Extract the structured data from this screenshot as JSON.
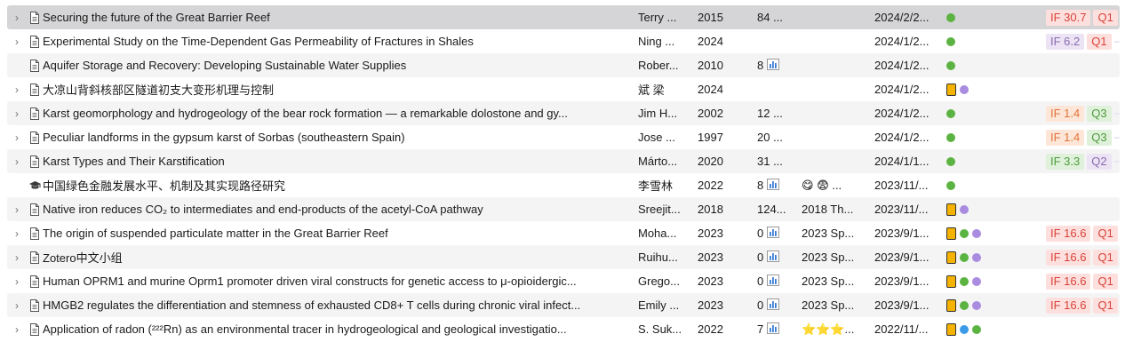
{
  "colors": {
    "tag_green": "#5bb342",
    "tag_purple": "#a98be0",
    "tag_blue": "#3b9be8",
    "tag_orange": "#f5b300"
  },
  "rows": [
    {
      "twisty": true,
      "icon": "document-icon",
      "title": "Securing the future of the Great Barrier Reef",
      "creator": "Terry ...",
      "year": "2015",
      "cite": "84 ...",
      "chart": false,
      "extra": "",
      "added": "2024/2/2...",
      "tags": [
        "green"
      ],
      "badges": [
        [
          "IF 30.7",
          "if-red"
        ],
        [
          "Q1",
          "q1"
        ]
      ],
      "selected": true
    },
    {
      "twisty": true,
      "icon": "document-icon",
      "title": "Experimental Study on the Time-Dependent Gas Permeability of Fractures in Shales",
      "creator": "Ning ...",
      "year": "2024",
      "cite": "",
      "chart": false,
      "extra": "",
      "added": "2024/1/2...",
      "tags": [
        "green"
      ],
      "badges": [
        [
          "IF 6.2",
          "if-purple"
        ],
        [
          "Q1",
          "q1"
        ],
        [
          "",
          "extra"
        ]
      ]
    },
    {
      "twisty": false,
      "icon": "document-icon",
      "title": "Aquifer Storage and Recovery: Developing Sustainable Water Supplies",
      "creator": "Rober...",
      "year": "2010",
      "cite": "8",
      "chart": true,
      "extra": "",
      "added": "2024/1/2...",
      "tags": [
        "green"
      ],
      "badges": []
    },
    {
      "twisty": true,
      "icon": "document-icon",
      "title": "大凉山背斜核部区隧道初支大变形机理与控制",
      "hl": [
        0,
        6
      ],
      "creator": "斌 梁",
      "year": "2024",
      "cite": "",
      "chart": false,
      "extra": "",
      "added": "2024/1/2...",
      "tags": [
        "orange",
        "purple"
      ],
      "badges": []
    },
    {
      "twisty": true,
      "icon": "document-icon",
      "title": "Karst geomorphology and hydrogeology of the bear rock formation — a remarkable dolostone and gy...",
      "creator": "Jim H...",
      "year": "2002",
      "cite": "12 ...",
      "chart": false,
      "extra": "",
      "added": "2024/1/2...",
      "tags": [
        "green"
      ],
      "badges": [
        [
          "IF 1.4",
          "if-orange"
        ],
        [
          "Q3",
          "q3"
        ],
        [
          "",
          "extra"
        ]
      ]
    },
    {
      "twisty": true,
      "icon": "document-icon",
      "title": "Peculiar landforms in the gypsum karst of Sorbas (southeastern Spain)",
      "creator": "Jose ...",
      "year": "1997",
      "cite": "20 ...",
      "chart": false,
      "extra": "",
      "added": "2024/1/2...",
      "tags": [
        "green"
      ],
      "badges": [
        [
          "IF 1.4",
          "if-orange"
        ],
        [
          "Q3",
          "q3"
        ],
        [
          "",
          "extra"
        ]
      ]
    },
    {
      "twisty": true,
      "icon": "document-icon",
      "title": "Karst Types and Their Karstification",
      "creator": "Márto...",
      "year": "2020",
      "cite": "31 ...",
      "chart": false,
      "extra": "",
      "added": "2024/1/1...",
      "tags": [
        "green"
      ],
      "badges": [
        [
          "IF 3.3",
          "if-green"
        ],
        [
          "Q2",
          "q2"
        ],
        [
          "",
          "extra"
        ]
      ]
    },
    {
      "twisty": false,
      "icon": "thesis-icon",
      "title": "中国绿色金融发展水平、机制及其实现路径研究",
      "creator": "李雪林",
      "year": "2022",
      "cite": "8",
      "chart": true,
      "extra": "😋 😨 ...",
      "added": "2023/11/...",
      "tags": [
        "green"
      ],
      "badges": []
    },
    {
      "twisty": true,
      "icon": "document-icon",
      "title": "Native iron reduces CO₂ to intermediates and end-products of the acetyl-CoA pathway",
      "creator": "Sreejit...",
      "year": "2018",
      "cite": "124...",
      "chart": false,
      "extra": "2018 Th...",
      "added": "2023/11/...",
      "tags": [
        "orange",
        "purple"
      ],
      "badges": []
    },
    {
      "twisty": true,
      "icon": "document-icon",
      "title": "The origin of suspended particulate matter in the Great Barrier Reef",
      "creator": "Moha...",
      "year": "2023",
      "cite": "0",
      "chart": true,
      "extra": "2023 Sp...",
      "added": "2023/9/1...",
      "tags": [
        "orange",
        "green",
        "purple"
      ],
      "badges": [
        [
          "IF 16.6",
          "if-red"
        ],
        [
          "Q1",
          "q1"
        ]
      ]
    },
    {
      "twisty": true,
      "icon": "document-icon",
      "title": "Zotero中文小组",
      "creator": "Ruihu...",
      "year": "2023",
      "cite": "0",
      "chart": true,
      "extra": "2023 Sp...",
      "added": "2023/9/1...",
      "tags": [
        "orange",
        "green",
        "purple"
      ],
      "badges": [
        [
          "IF 16.6",
          "if-red"
        ],
        [
          "Q1",
          "q1"
        ]
      ]
    },
    {
      "twisty": true,
      "icon": "document-icon",
      "title": "Human OPRM1 and murine Oprm1 promoter driven viral constructs for genetic access to μ-opioidergic...",
      "creator": "Grego...",
      "year": "2023",
      "cite": "0",
      "chart": true,
      "extra": "2023 Sp...",
      "added": "2023/9/1...",
      "tags": [
        "orange",
        "green",
        "purple"
      ],
      "badges": [
        [
          "IF 16.6",
          "if-red"
        ],
        [
          "Q1",
          "q1"
        ]
      ]
    },
    {
      "twisty": true,
      "icon": "document-icon",
      "title": "HMGB2 regulates the differentiation and stemness of exhausted CD8+ T cells during chronic viral infect...",
      "creator": "Emily ...",
      "year": "2023",
      "cite": "0",
      "chart": true,
      "extra": "2023 Sp...",
      "added": "2023/9/1...",
      "tags": [
        "orange",
        "green",
        "purple"
      ],
      "badges": [
        [
          "IF 16.6",
          "if-red"
        ],
        [
          "Q1",
          "q1"
        ]
      ]
    },
    {
      "twisty": true,
      "icon": "document-icon",
      "title": "Application of radon (²²²Rn) as an environmental tracer in hydrogeological and geological investigatio...",
      "creator": "S. Suk...",
      "year": "2022",
      "cite": "7",
      "chart": true,
      "extra": "⭐⭐⭐...",
      "added": "2022/11/...",
      "tags": [
        "orange",
        "blue",
        "green"
      ],
      "badges": []
    }
  ]
}
